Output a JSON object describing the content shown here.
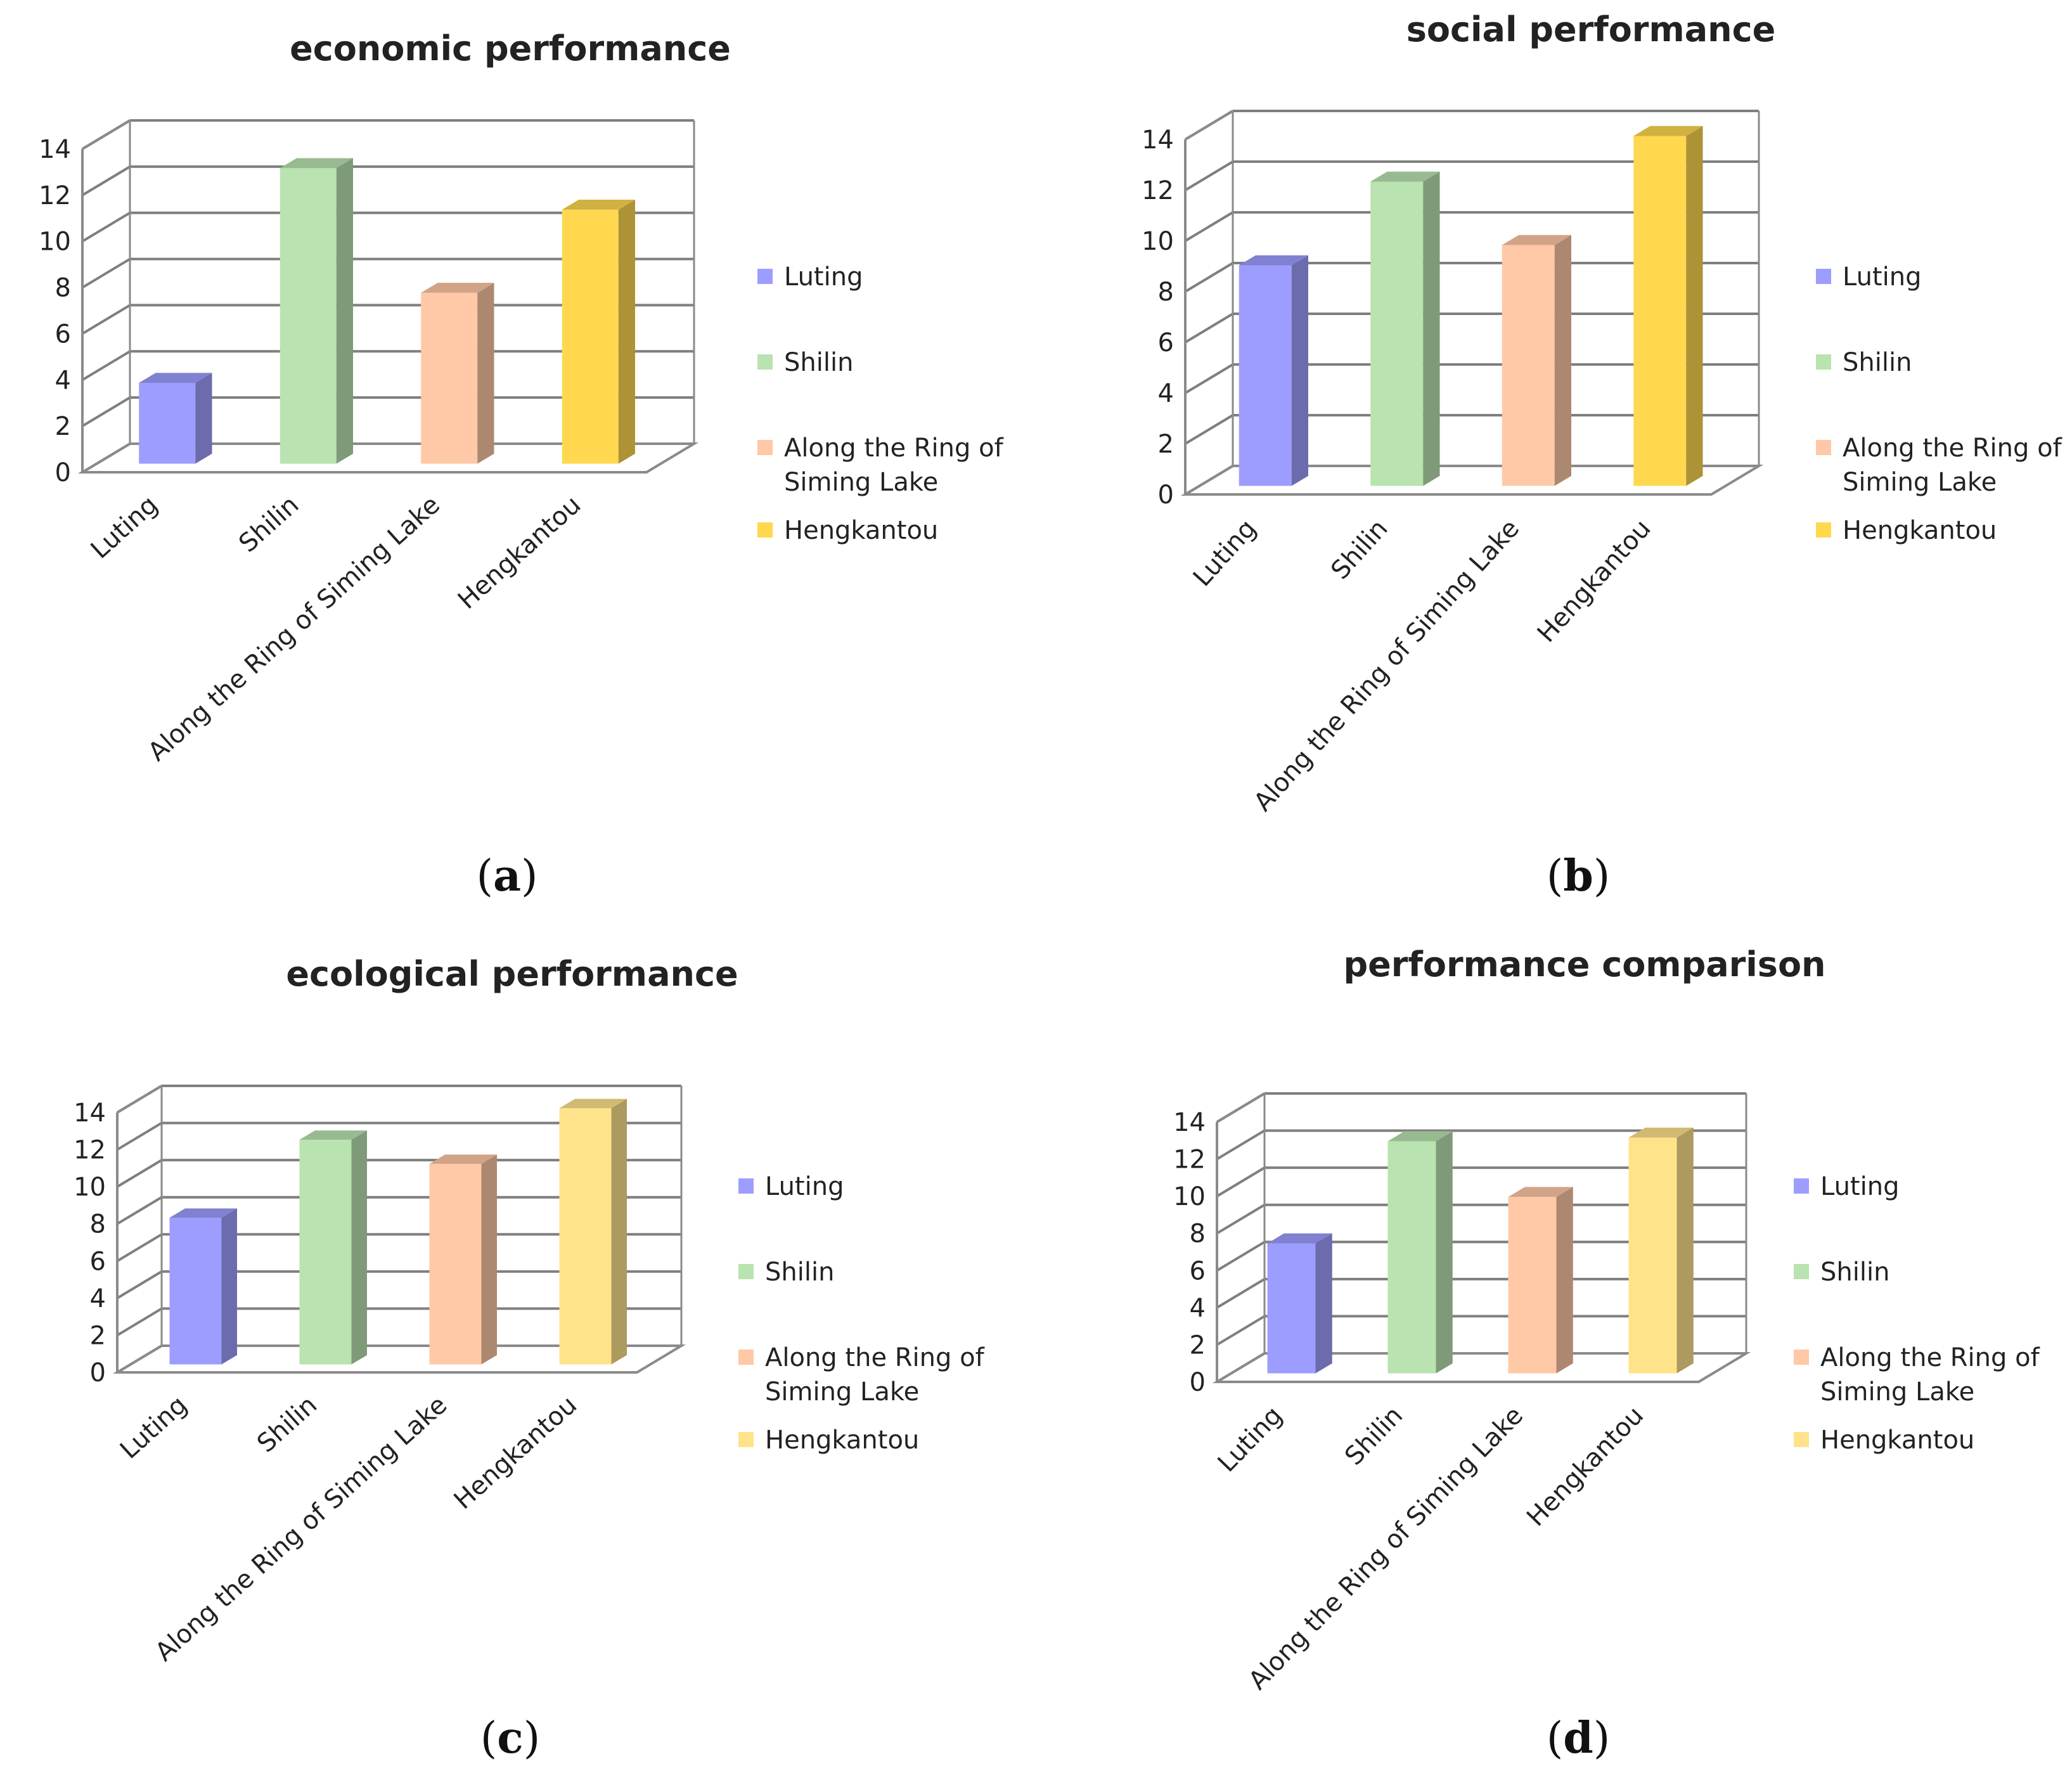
{
  "chart_data": [
    {
      "type": "bar",
      "title": "economic performance",
      "caption": "(a)",
      "categories": [
        "Luting",
        "Shilin",
        "Along the Ring of Siming Lake",
        "Hengkantou"
      ],
      "values": [
        3.5,
        12.8,
        7.4,
        11.0
      ],
      "ylim": [
        0,
        14
      ],
      "yticks": [
        "0",
        "2",
        "4",
        "6",
        "8",
        "10",
        "12",
        "14"
      ],
      "legend": [
        {
          "label": "Luting",
          "line1": "Luting"
        },
        {
          "label": "Shilin",
          "line1": "Shilin"
        },
        {
          "label": "Along the Ring of Siming Lake",
          "line1": "Along the Ring of",
          "line2": "Siming Lake"
        },
        {
          "label": "Hengkantou",
          "line1": "Hengkantou"
        }
      ],
      "colors": [
        "#9d9dff",
        "#b9e3b0",
        "#ffc8a6",
        "#ffd84f"
      ],
      "grid": true,
      "legend_position": "right"
    },
    {
      "type": "bar",
      "title": "social performance",
      "caption": "(b)",
      "categories": [
        "Luting",
        "Shilin",
        "Along the Ring of Siming Lake",
        "Hengkantou"
      ],
      "values": [
        8.7,
        12.0,
        9.5,
        13.8
      ],
      "ylim": [
        0,
        14
      ],
      "yticks": [
        "0",
        "2",
        "4",
        "6",
        "8",
        "10",
        "12",
        "14"
      ],
      "legend": [
        {
          "label": "Luting",
          "line1": "Luting"
        },
        {
          "label": "Shilin",
          "line1": "Shilin"
        },
        {
          "label": "Along the Ring of Siming Lake",
          "line1": "Along the Ring of",
          "line2": "Siming Lake"
        },
        {
          "label": "Hengkantou",
          "line1": "Hengkantou"
        }
      ],
      "colors": [
        "#9d9dff",
        "#b9e3b0",
        "#ffc8a6",
        "#ffd84f"
      ],
      "grid": true,
      "legend_position": "right"
    },
    {
      "type": "bar",
      "title": "ecological performance",
      "caption": "(c)",
      "categories": [
        "Luting",
        "Shilin",
        "Along the Ring of Siming Lake",
        "Hengkantou"
      ],
      "values": [
        7.9,
        12.1,
        10.8,
        13.8
      ],
      "ylim": [
        0,
        14
      ],
      "yticks": [
        "0",
        "2",
        "4",
        "6",
        "8",
        "10",
        "12",
        "14"
      ],
      "legend": [
        {
          "label": "Luting",
          "line1": "Luting"
        },
        {
          "label": "Shilin",
          "line1": "Shilin"
        },
        {
          "label": "Along the Ring of Siming Lake",
          "line1": "Along the Ring of",
          "line2": "Siming Lake"
        },
        {
          "label": "Hengkantou",
          "line1": "Hengkantou"
        }
      ],
      "colors": [
        "#9d9dff",
        "#b9e3b0",
        "#ffc8a6",
        "#ffe38a"
      ],
      "grid": true,
      "legend_position": "right"
    },
    {
      "type": "bar",
      "title": "performance comparison",
      "caption": "(d)",
      "categories": [
        "Luting",
        "Shilin",
        "Along the Ring of Siming Lake",
        "Hengkantou"
      ],
      "values": [
        7.0,
        12.5,
        9.5,
        12.7
      ],
      "ylim": [
        0,
        14
      ],
      "yticks": [
        "0",
        "2",
        "4",
        "6",
        "8",
        "10",
        "12",
        "14"
      ],
      "legend": [
        {
          "label": "Luting",
          "line1": "Luting"
        },
        {
          "label": "Shilin",
          "line1": "Shilin"
        },
        {
          "label": "Along the Ring of Siming Lake",
          "line1": "Along the Ring of",
          "line2": "Siming Lake"
        },
        {
          "label": "Hengkantou",
          "line1": "Hengkantou"
        }
      ],
      "colors": [
        "#9d9dff",
        "#b9e3b0",
        "#ffc8a6",
        "#ffe38a"
      ],
      "grid": true,
      "legend_position": "right"
    }
  ]
}
